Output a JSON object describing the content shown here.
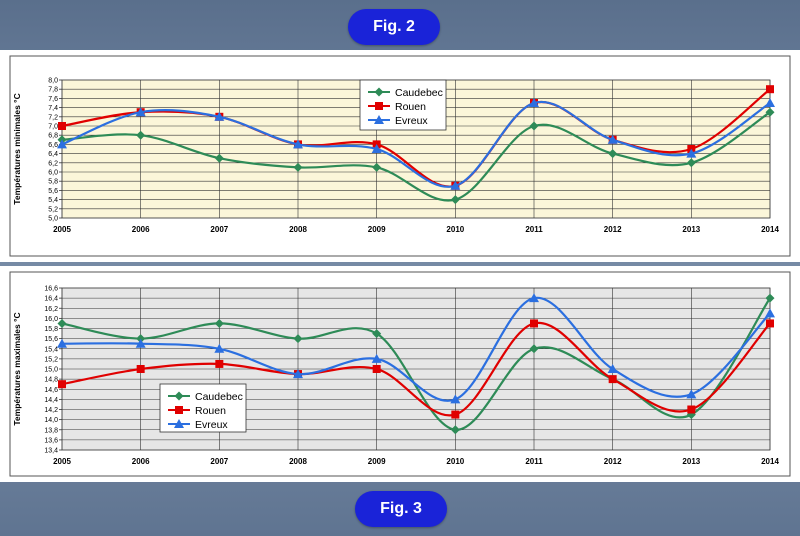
{
  "fig_top_label": "Fig. 2",
  "fig_bottom_label": "Fig. 3",
  "colors": {
    "caudebec": "#2e8b57",
    "rouen": "#e00000",
    "evreux": "#2b6fe0"
  },
  "chart_data": [
    {
      "type": "line",
      "ylabel": "Températures minimales °C",
      "x": [
        "2005",
        "2006",
        "2007",
        "2008",
        "2009",
        "2010",
        "2011",
        "2012",
        "2013",
        "2014"
      ],
      "ylim": [
        5.0,
        8.0
      ],
      "ytick_step": 0.2,
      "ytick_labels": [
        "5,0",
        "5,2",
        "5,4",
        "5,6",
        "5,8",
        "6,0",
        "6,2",
        "6,4",
        "6,6",
        "6,8",
        "7,0",
        "7,2",
        "7,4",
        "7,6",
        "7,8",
        "8,0"
      ],
      "grid": true,
      "legend_position": "top-center",
      "series": [
        {
          "name": "Caudebec",
          "marker": "diamond",
          "values": [
            6.7,
            6.8,
            6.3,
            6.1,
            6.1,
            5.4,
            7.0,
            6.4,
            6.2,
            7.3
          ]
        },
        {
          "name": "Rouen",
          "marker": "square",
          "values": [
            7.0,
            7.3,
            7.2,
            6.6,
            6.6,
            5.7,
            7.5,
            6.7,
            6.5,
            7.8
          ]
        },
        {
          "name": "Evreux",
          "marker": "triangle",
          "values": [
            6.6,
            7.3,
            7.2,
            6.6,
            6.5,
            5.7,
            7.5,
            6.7,
            6.4,
            7.5
          ]
        }
      ]
    },
    {
      "type": "line",
      "ylabel": "Températures maximales °C",
      "x": [
        "2005",
        "2006",
        "2007",
        "2008",
        "2009",
        "2010",
        "2011",
        "2012",
        "2013",
        "2014"
      ],
      "ylim": [
        13.4,
        16.6
      ],
      "ytick_step": 0.2,
      "ytick_labels": [
        "13,4",
        "13,6",
        "13,8",
        "14,0",
        "14,2",
        "14,4",
        "14,6",
        "14,8",
        "15,0",
        "15,2",
        "15,4",
        "15,6",
        "15,8",
        "16,0",
        "16,2",
        "16,4",
        "16,6"
      ],
      "grid": true,
      "legend_position": "bottom-left",
      "series": [
        {
          "name": "Caudebec",
          "marker": "diamond",
          "values": [
            15.9,
            15.6,
            15.9,
            15.6,
            15.7,
            13.8,
            15.4,
            14.8,
            14.1,
            16.4
          ]
        },
        {
          "name": "Rouen",
          "marker": "square",
          "values": [
            14.7,
            15.0,
            15.1,
            14.9,
            15.0,
            14.1,
            15.9,
            14.8,
            14.2,
            15.9
          ]
        },
        {
          "name": "Evreux",
          "marker": "triangle",
          "values": [
            15.5,
            15.5,
            15.4,
            14.9,
            15.2,
            14.4,
            16.4,
            15.0,
            14.5,
            16.1
          ]
        }
      ]
    }
  ]
}
